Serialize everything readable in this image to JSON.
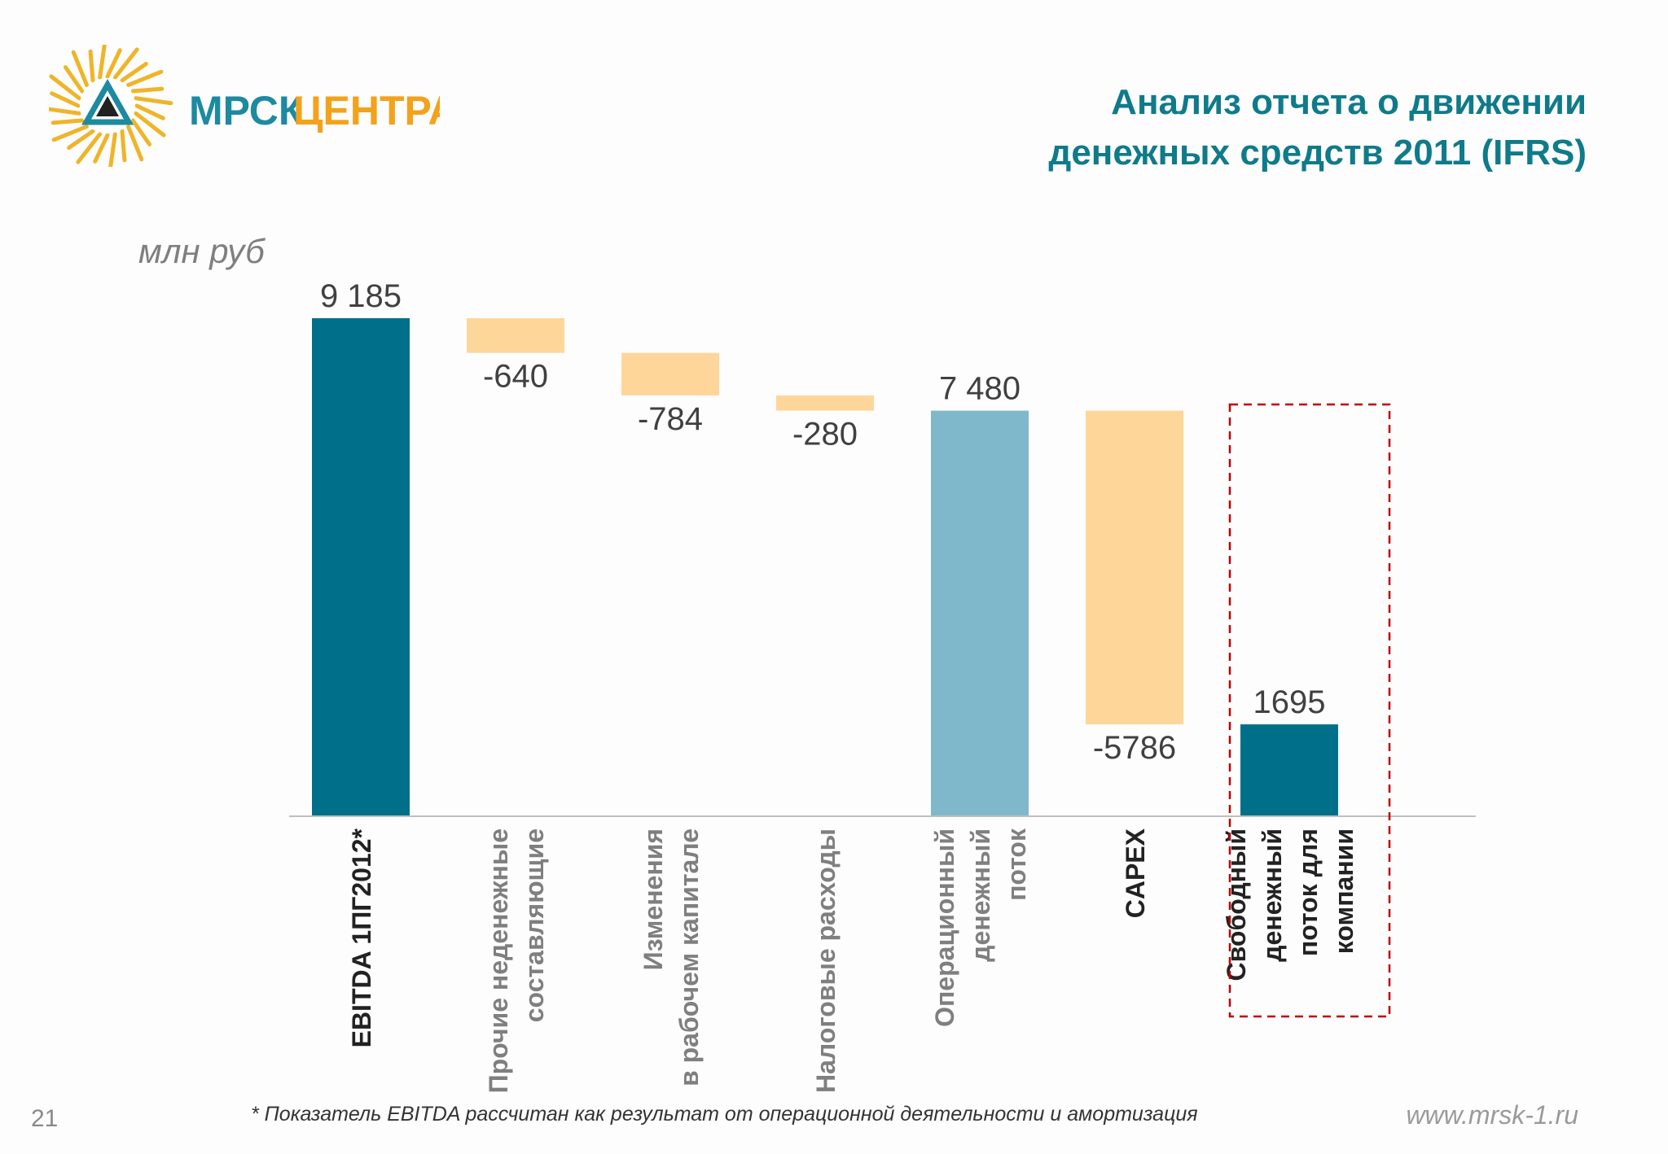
{
  "header": {
    "logo_text_1": "МРСК",
    "logo_text_2": "ЦЕНТРА",
    "title_line1": "Анализ отчета о движении",
    "title_line2": "денежных средств 2011 (IFRS)"
  },
  "colors": {
    "dark_teal": "#00708a",
    "light_teal": "#7fb8cb",
    "peach": "#ffd699",
    "title": "#0f7b8a",
    "logo_teal": "#1d8aa0",
    "logo_orange": "#f3a21b",
    "highlight_border": "#c00000"
  },
  "chart_data": {
    "type": "bar",
    "subtype": "waterfall",
    "unit_label": "млн руб",
    "categories": [
      [
        "EBITDA 1ПГ2012*"
      ],
      [
        "Прочие неденежные",
        "составляющие"
      ],
      [
        "Изменения",
        "в рабочем капитале"
      ],
      [
        "Налоговые расходы"
      ],
      [
        "Операционный",
        "денежный",
        "поток"
      ],
      [
        "CAPEX"
      ],
      [
        "Свободный",
        "денежный",
        "поток для",
        "компании"
      ]
    ],
    "values": [
      9185,
      -640,
      -784,
      -280,
      7480,
      -5786,
      1695
    ],
    "value_labels": [
      "9 185",
      "-640",
      "-784",
      "-280",
      "7 480",
      "-5786",
      "1695"
    ],
    "bar_kinds": [
      "total",
      "change",
      "change",
      "change",
      "subtotal",
      "change",
      "total"
    ],
    "ylim": [
      0,
      9185
    ],
    "grid": false,
    "legend": "none",
    "highlighted_category_index": 6
  },
  "footer": {
    "page_number": "21",
    "footnote": "* Показатель EBITDA рассчитан как результат от операционной деятельности и амортизация",
    "website": "www.mrsk-1.ru"
  }
}
